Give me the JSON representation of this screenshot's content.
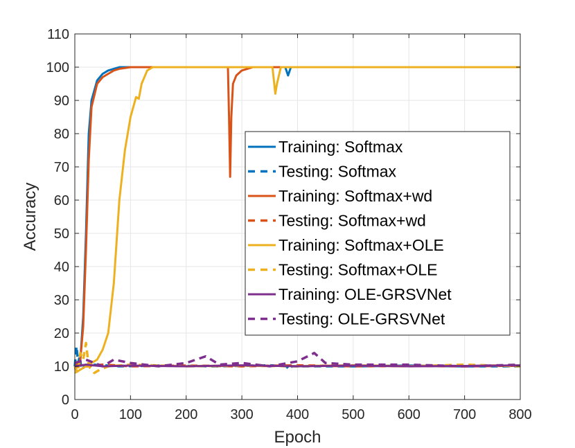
{
  "chart_data": {
    "type": "line",
    "title": "",
    "xlabel": "Epoch",
    "ylabel": "Accuracy",
    "xlim": [
      0,
      800
    ],
    "ylim": [
      0,
      110
    ],
    "xticks": [
      0,
      100,
      200,
      300,
      400,
      500,
      600,
      700,
      800
    ],
    "yticks": [
      0,
      10,
      20,
      30,
      40,
      50,
      60,
      70,
      80,
      90,
      100,
      110
    ],
    "grid": true,
    "legend_position": "center-right",
    "series": [
      {
        "name": "Training: Softmax",
        "color": "#0072BD",
        "dash": "solid",
        "points": [
          [
            0,
            9
          ],
          [
            5,
            10
          ],
          [
            10,
            12
          ],
          [
            15,
            25
          ],
          [
            20,
            50
          ],
          [
            25,
            80
          ],
          [
            30,
            90
          ],
          [
            40,
            96
          ],
          [
            50,
            98
          ],
          [
            60,
            99
          ],
          [
            80,
            100
          ],
          [
            100,
            100
          ],
          [
            378,
            100
          ],
          [
            383,
            97.5
          ],
          [
            388,
            100
          ],
          [
            800,
            100
          ]
        ]
      },
      {
        "name": "Testing: Softmax",
        "color": "#0072BD",
        "dash": "dashed",
        "points": [
          [
            0,
            10
          ],
          [
            3,
            16
          ],
          [
            6,
            11
          ],
          [
            9,
            13
          ],
          [
            12,
            9
          ],
          [
            18,
            10
          ],
          [
            30,
            10.5
          ],
          [
            80,
            10
          ],
          [
            150,
            10.2
          ],
          [
            250,
            10
          ],
          [
            350,
            10.3
          ],
          [
            380,
            10
          ],
          [
            385,
            9
          ],
          [
            390,
            10
          ],
          [
            500,
            10
          ],
          [
            600,
            10.2
          ],
          [
            700,
            10
          ],
          [
            800,
            10
          ]
        ]
      },
      {
        "name": "Training: Softmax+wd",
        "color": "#D95319",
        "dash": "solid",
        "points": [
          [
            0,
            9
          ],
          [
            5,
            10
          ],
          [
            10,
            12
          ],
          [
            15,
            22
          ],
          [
            20,
            45
          ],
          [
            25,
            72
          ],
          [
            30,
            88
          ],
          [
            40,
            95
          ],
          [
            50,
            97
          ],
          [
            60,
            98
          ],
          [
            70,
            99
          ],
          [
            80,
            99.5
          ],
          [
            100,
            100
          ],
          [
            275,
            100
          ],
          [
            277,
            85
          ],
          [
            279,
            67
          ],
          [
            281,
            85
          ],
          [
            284,
            95
          ],
          [
            290,
            97.5
          ],
          [
            300,
            99
          ],
          [
            320,
            100
          ],
          [
            800,
            100
          ]
        ]
      },
      {
        "name": "Testing: Softmax+wd",
        "color": "#D95319",
        "dash": "dashed",
        "points": [
          [
            0,
            10
          ],
          [
            10,
            11
          ],
          [
            20,
            10
          ],
          [
            50,
            10.5
          ],
          [
            100,
            10
          ],
          [
            200,
            10.2
          ],
          [
            300,
            10
          ],
          [
            400,
            10.3
          ],
          [
            500,
            10
          ],
          [
            600,
            10.1
          ],
          [
            700,
            10
          ],
          [
            800,
            10.2
          ]
        ]
      },
      {
        "name": "Training: Softmax+OLE",
        "color": "#EDB120",
        "dash": "solid",
        "points": [
          [
            0,
            8
          ],
          [
            10,
            9
          ],
          [
            20,
            10
          ],
          [
            30,
            11
          ],
          [
            40,
            12
          ],
          [
            50,
            15
          ],
          [
            60,
            20
          ],
          [
            70,
            35
          ],
          [
            80,
            60
          ],
          [
            90,
            75
          ],
          [
            100,
            85
          ],
          [
            110,
            91
          ],
          [
            115,
            90.5
          ],
          [
            120,
            95
          ],
          [
            130,
            99
          ],
          [
            140,
            100
          ],
          [
            355,
            100
          ],
          [
            360,
            92
          ],
          [
            363,
            95
          ],
          [
            370,
            100
          ],
          [
            800,
            100
          ]
        ]
      },
      {
        "name": "Testing: Softmax+OLE",
        "color": "#EDB120",
        "dash": "dashed",
        "points": [
          [
            0,
            10
          ],
          [
            5,
            8
          ],
          [
            10,
            14
          ],
          [
            15,
            12
          ],
          [
            20,
            17
          ],
          [
            25,
            10
          ],
          [
            35,
            8
          ],
          [
            45,
            9
          ],
          [
            60,
            10
          ],
          [
            100,
            10.5
          ],
          [
            200,
            10
          ],
          [
            300,
            10.2
          ],
          [
            400,
            10
          ],
          [
            500,
            10.3
          ],
          [
            600,
            10
          ],
          [
            700,
            10.5
          ],
          [
            800,
            10
          ]
        ]
      },
      {
        "name": "Training: OLE-GRSVNet",
        "color": "#7E2F8E",
        "dash": "solid",
        "points": [
          [
            0,
            10
          ],
          [
            20,
            10.5
          ],
          [
            50,
            10
          ],
          [
            100,
            10.2
          ],
          [
            200,
            10
          ],
          [
            300,
            10.3
          ],
          [
            400,
            10
          ],
          [
            500,
            10.2
          ],
          [
            600,
            10
          ],
          [
            700,
            10.1
          ],
          [
            800,
            10.3
          ]
        ]
      },
      {
        "name": "Testing: OLE-GRSVNet",
        "color": "#7E2F8E",
        "dash": "dashed",
        "points": [
          [
            0,
            11
          ],
          [
            20,
            12
          ],
          [
            50,
            10
          ],
          [
            70,
            12
          ],
          [
            100,
            11
          ],
          [
            150,
            10
          ],
          [
            200,
            11
          ],
          [
            235,
            13
          ],
          [
            260,
            10.5
          ],
          [
            300,
            11
          ],
          [
            350,
            10
          ],
          [
            400,
            11.5
          ],
          [
            430,
            14
          ],
          [
            450,
            11
          ],
          [
            500,
            10.5
          ],
          [
            600,
            10.5
          ],
          [
            700,
            10
          ],
          [
            800,
            10.5
          ]
        ]
      }
    ]
  }
}
